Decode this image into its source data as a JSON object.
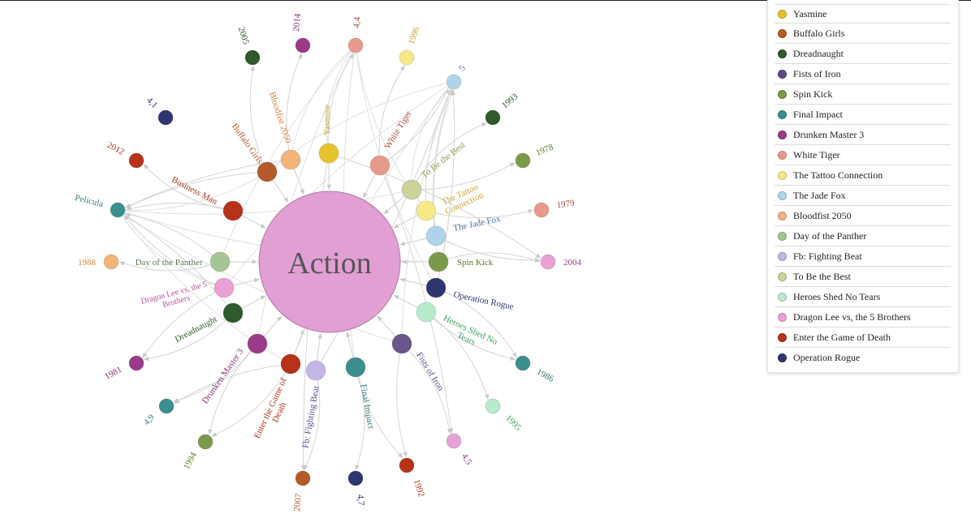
{
  "center": {
    "label": "Action",
    "color": "#e29fd3"
  },
  "legend": [
    {
      "name": "Yasmine",
      "color": "#e8c12f"
    },
    {
      "name": "Buffalo Girls",
      "color": "#b55a28"
    },
    {
      "name": "Dreadnaught",
      "color": "#2f5a2c"
    },
    {
      "name": "Fists of Iron",
      "color": "#5d4a87"
    },
    {
      "name": "Spin Kick",
      "color": "#7a9a4a"
    },
    {
      "name": "Final Impact",
      "color": "#3b8f8d"
    },
    {
      "name": "Drunken Master 3",
      "color": "#9a3b8a"
    },
    {
      "name": "White Tiger",
      "color": "#e89a8a"
    },
    {
      "name": "The Tattoo Connection",
      "color": "#f7e887"
    },
    {
      "name": "The Jade Fox",
      "color": "#aed4ea"
    },
    {
      "name": "Bloodfist 2050",
      "color": "#f3b47a"
    },
    {
      "name": "Day of the Panther",
      "color": "#a4c594"
    },
    {
      "name": "Fb: Fighting Beat",
      "color": "#c5b4e6"
    },
    {
      "name": "To Be the Best",
      "color": "#ccd29a"
    },
    {
      "name": "Heroes Shed No Tears",
      "color": "#b6ebcb"
    },
    {
      "name": "Dragon Lee vs, the 5 Brothers",
      "color": "#e8a1d5"
    },
    {
      "name": "Enter the Game of Death",
      "color": "#b8321a"
    },
    {
      "name": "Operation Rogue",
      "color": "#2e3670"
    }
  ],
  "movies": [
    {
      "label": "Yasmine",
      "color": "#e8c12f",
      "label_color": "#c7a125"
    },
    {
      "label": "White Tiger",
      "color": "#e89a8a",
      "label_color": "#b24a3a"
    },
    {
      "label": "To Be the Best",
      "color": "#ccd29a",
      "label_color": "#8f9a44"
    },
    {
      "label": "The Tattoo Connection",
      "color": "#f7e887",
      "label_color": "#c9a62e"
    },
    {
      "label": "The Jade Fox",
      "color": "#aed4ea",
      "label_color": "#4a6fa0"
    },
    {
      "label": "Spin Kick",
      "color": "#7a9a4a",
      "label_color": "#5a7a2a"
    },
    {
      "label": "Operation Rogue",
      "color": "#2e3670",
      "label_color": "#2e3670"
    },
    {
      "label": "Heroes Shed No Tears",
      "color": "#b6ebcb",
      "label_color": "#3aa35e"
    },
    {
      "label": "Fists of Iron",
      "color": "#6a558d",
      "label_color": "#5d4a87"
    },
    {
      "label": "Final Impact",
      "color": "#3b8f8d",
      "label_color": "#2f7a78"
    },
    {
      "label": "Fb: Fighting Beat",
      "color": "#c5b4e6",
      "label_color": "#5a4aa0"
    },
    {
      "label": "Enter the Game of Death",
      "color": "#b8321a",
      "label_color": "#b8321a"
    },
    {
      "label": "Drunken Master 3",
      "color": "#9a3b8a",
      "label_color": "#8a2f7a"
    },
    {
      "label": "Dreadnaught",
      "color": "#2f5a2c",
      "label_color": "#2f5a2c"
    },
    {
      "label": "Dragon Lee vs, the 5 Brothers",
      "color": "#e8a1d5",
      "label_color": "#b84a9a"
    },
    {
      "label": "Day of the Panther",
      "color": "#a4c594",
      "label_color": "#5a7a4a"
    },
    {
      "label": "Business Man",
      "color": "#b8321a",
      "label_color": "#b8321a"
    },
    {
      "label": "Buffalo Girls",
      "color": "#b55a28",
      "label_color": "#b55a28"
    },
    {
      "label": "Bloodfist 2050",
      "color": "#f3b47a",
      "label_color": "#d0843a"
    }
  ],
  "attributes": [
    {
      "label": "2005",
      "color": "#2f5a2c",
      "label_color": "#2f5a2c"
    },
    {
      "label": "2014",
      "color": "#9a3b8a",
      "label_color": "#8a2f7a"
    },
    {
      "label": "4,4",
      "color": "#e89a8a",
      "label_color": "#b24a3a"
    },
    {
      "label": "1996",
      "color": "#f7e887",
      "label_color": "#c9a62e"
    },
    {
      "label": "5",
      "color": "#aed4ea",
      "label_color": "#4a6fa0"
    },
    {
      "label": "1993",
      "color": "#2f5a2c",
      "label_color": "#2f5a2c"
    },
    {
      "label": "1978",
      "color": "#7a9a4a",
      "label_color": "#5a7a2a"
    },
    {
      "label": "1979",
      "color": "#e89a8a",
      "label_color": "#b24a3a"
    },
    {
      "label": "2004",
      "color": "#e8a1d5",
      "label_color": "#9a3b8a"
    },
    {
      "label": "1986",
      "color": "#3b8f8d",
      "label_color": "#2f7a78"
    },
    {
      "label": "1995",
      "color": "#b6ebcb",
      "label_color": "#3aa35e"
    },
    {
      "label": "4,5",
      "color": "#e8a1d5",
      "label_color": "#9a3b8a"
    },
    {
      "label": "1992",
      "color": "#b8321a",
      "label_color": "#b8321a"
    },
    {
      "label": "4,7",
      "color": "#2e3670",
      "label_color": "#2e3670"
    },
    {
      "label": "2007",
      "color": "#b55a28",
      "label_color": "#b55a28"
    },
    {
      "label": "1994",
      "color": "#7a9a4a",
      "label_color": "#5a7a2a"
    },
    {
      "label": "4,9",
      "color": "#3b8f8d",
      "label_color": "#2f7a78"
    },
    {
      "label": "1981",
      "color": "#9a3b8a",
      "label_color": "#8a2f7a"
    },
    {
      "label": "1988",
      "color": "#f3b47a",
      "label_color": "#d0843a"
    },
    {
      "label": "Pelicula",
      "color": "#3b8f8d",
      "label_color": "#2f7a78"
    },
    {
      "label": "2012",
      "color": "#b8321a",
      "label_color": "#b8321a"
    },
    {
      "label": "4,1",
      "color": "#2e3670",
      "label_color": "#2e3670"
    }
  ]
}
